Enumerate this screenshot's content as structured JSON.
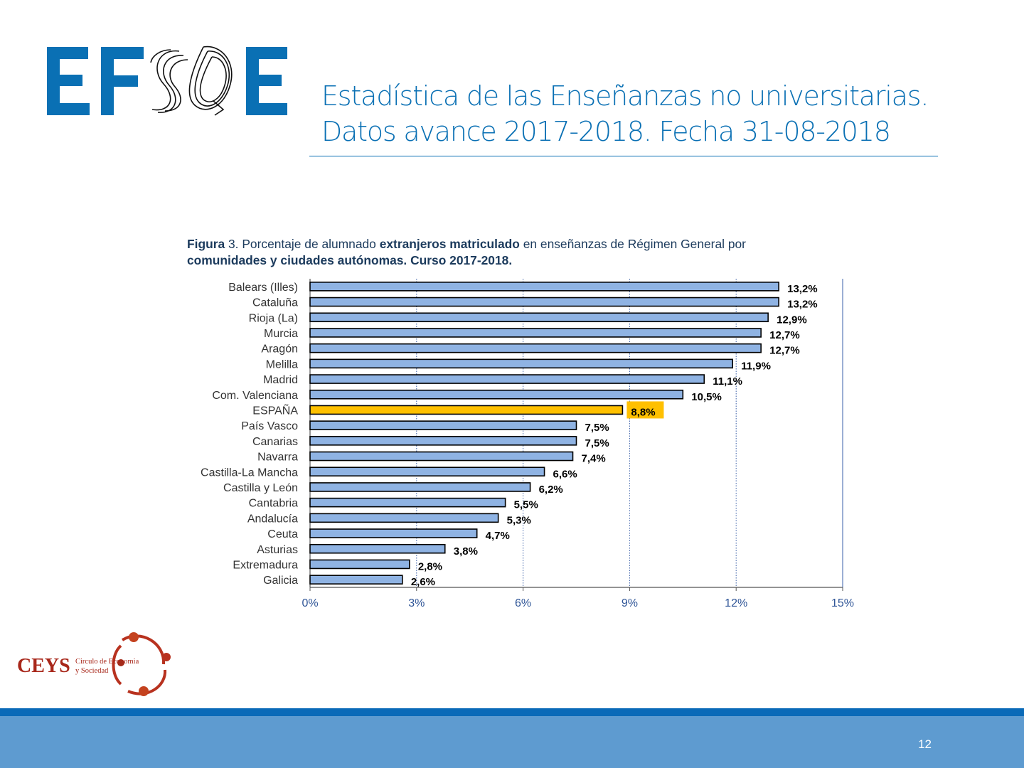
{
  "header": {
    "logo_text": "EFOE",
    "title_line1": "Estadística de las Enseñanzas no universitarias.",
    "title_line2": "Datos avance 2017-2018. Fecha 31-08-2018"
  },
  "caption": {
    "figure_label": "Figura",
    "rest_line1_a": "3. Porcentaje de alumnado",
    "rest_line1_b": "extranjeros matriculado",
    "rest_line1_c": "en enseñanzas de Régimen General por",
    "line2": "comunidades y ciudades autónomas. Curso 2017-2018."
  },
  "chart_data": {
    "type": "bar",
    "orientation": "horizontal",
    "categories": [
      "Balears (Illes)",
      "Cataluña",
      "Rioja (La)",
      "Murcia",
      "Aragón",
      "Melilla",
      "Madrid",
      "Com. Valenciana",
      "ESPAÑA",
      "País Vasco",
      "Canarias",
      "Navarra",
      "Castilla-La Mancha",
      "Castilla y León",
      "Cantabria",
      "Andalucía",
      "Ceuta",
      "Asturias",
      "Extremadura",
      "Galicia"
    ],
    "values": [
      13.2,
      13.2,
      12.9,
      12.7,
      12.7,
      11.9,
      11.1,
      10.5,
      8.8,
      7.5,
      7.5,
      7.4,
      6.6,
      6.2,
      5.5,
      5.3,
      4.7,
      3.8,
      2.8,
      2.6
    ],
    "value_labels": [
      "13,2%",
      "13,2%",
      "12,9%",
      "12,7%",
      "12,7%",
      "11,9%",
      "11,1%",
      "10,5%",
      "8,8%",
      "7,5%",
      "7,5%",
      "7,4%",
      "6,6%",
      "6,2%",
      "5,5%",
      "5,3%",
      "4,7%",
      "3,8%",
      "2,8%",
      "2,6%"
    ],
    "highlight": "ESPAÑA",
    "xlim": [
      0,
      15
    ],
    "xticks": [
      "0%",
      "3%",
      "6%",
      "9%",
      "12%",
      "15%"
    ],
    "grid": "vertical dotted",
    "colors": {
      "bar": "#8fb3e3",
      "highlight": "#ffc000",
      "bar_border": "#000000",
      "grid": "#3a5fa8"
    }
  },
  "footer": {
    "org_short": "CEYS",
    "org_line1": "Circulo de Economia",
    "org_line2": "y Sociedad",
    "page_number": "12",
    "colors": {
      "band": "#5e9bd0",
      "band_top": "#0a6ab8"
    }
  }
}
